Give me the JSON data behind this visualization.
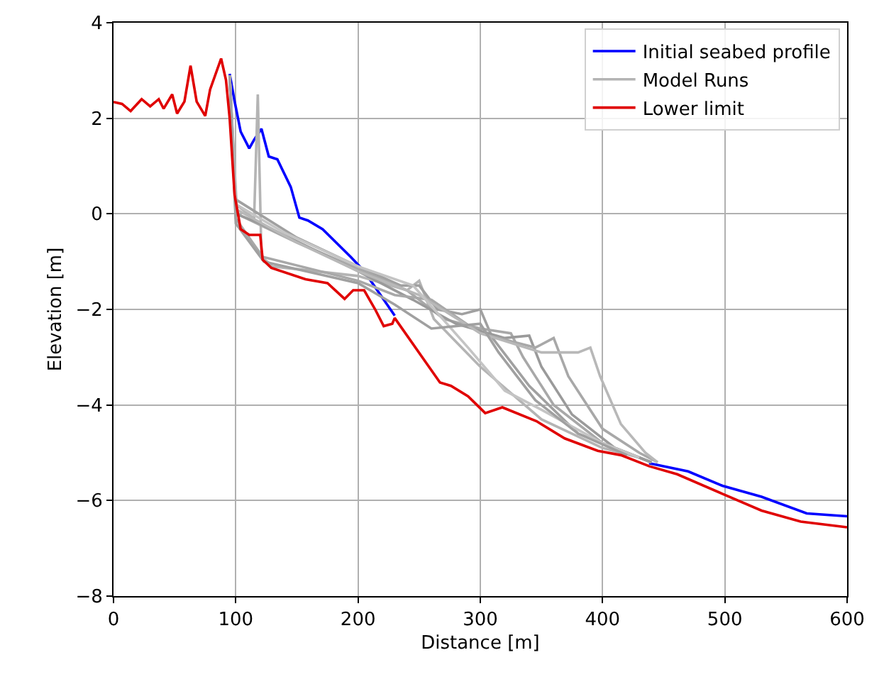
{
  "chart_data": {
    "type": "line",
    "xlabel": "Distance [m]",
    "ylabel": "Elevation [m]",
    "xlim": [
      0,
      600
    ],
    "xticks": [
      0,
      100,
      200,
      300,
      400,
      500,
      600
    ],
    "ylim": [
      -8,
      4
    ],
    "yticks": [
      {
        "value": -8,
        "label": "−8"
      },
      {
        "value": -6,
        "label": "−6"
      },
      {
        "value": -4,
        "label": "−4"
      },
      {
        "value": -2,
        "label": "−2"
      },
      0,
      2,
      4
    ],
    "grid": true,
    "legend": "top right",
    "marker": "none",
    "line_style": "solid",
    "series": [
      {
        "name": "Initial seabed profile",
        "color": "#0000ff",
        "x": [
          95,
          99,
          104,
          111,
          115,
          121,
          127,
          134,
          145,
          152,
          159,
          171,
          194,
          205,
          230,
          330,
          438,
          470,
          498,
          530,
          567,
          600
        ],
        "values": [
          2.93,
          2.36,
          1.72,
          1.37,
          1.55,
          1.78,
          1.2,
          1.14,
          0.56,
          -0.08,
          -0.14,
          -0.32,
          -0.9,
          -1.2,
          -2.13,
          null,
          -5.22,
          -5.39,
          -5.69,
          -5.92,
          -6.27,
          -6.33
        ]
      },
      {
        "name": "Model Runs",
        "color": "#b4b4b4",
        "x": [
          95,
          100,
          115,
          118,
          121,
          130,
          200,
          240,
          250,
          262,
          300,
          350,
          400,
          430
        ],
        "values": [
          2.9,
          0.2,
          -0.1,
          2.5,
          -0.9,
          -1.1,
          -1.3,
          -1.6,
          -1.4,
          -2.2,
          -3.2,
          -4.3,
          -4.9,
          -5.1
        ]
      },
      {
        "color": "#a0a0a0",
        "x": [
          95,
          100,
          150,
          200,
          235,
          250,
          265,
          285,
          300,
          310,
          340,
          380,
          420,
          440
        ],
        "values": [
          2.9,
          0.3,
          -0.5,
          -1.1,
          -1.5,
          -1.5,
          -2.0,
          -2.1,
          -2.0,
          -2.6,
          -3.6,
          -4.6,
          -5.0,
          -5.2
        ]
      },
      {
        "color": "#a8a8a8",
        "x": [
          95,
          101,
          150,
          200,
          240,
          270,
          300,
          325,
          335,
          360,
          400,
          440
        ],
        "values": [
          2.9,
          0.0,
          -0.6,
          -1.15,
          -1.6,
          -2.2,
          -2.4,
          -2.5,
          -3.0,
          -4.0,
          -4.8,
          -5.2
        ]
      },
      {
        "color": "#9a9a9a",
        "x": [
          95,
          100,
          120,
          200,
          245,
          280,
          320,
          340,
          350,
          375,
          410,
          440
        ],
        "values": [
          2.9,
          0.0,
          -0.2,
          -1.2,
          -1.8,
          -2.3,
          -2.6,
          -2.55,
          -3.2,
          -4.2,
          -4.9,
          -5.2
        ]
      },
      {
        "color": "#a8a8a8",
        "x": [
          95,
          100,
          122,
          200,
          230,
          260,
          300,
          345,
          360,
          372,
          400,
          430,
          445
        ],
        "values": [
          2.9,
          -0.1,
          -0.9,
          -1.4,
          -1.7,
          -1.8,
          -2.5,
          -2.8,
          -2.6,
          -3.4,
          -4.5,
          -5.0,
          -5.2
        ]
      },
      {
        "color": "#b8b8b8",
        "x": [
          95,
          100,
          150,
          200,
          250,
          300,
          350,
          380,
          390,
          398,
          415,
          435,
          445
        ],
        "values": [
          2.9,
          0.1,
          -0.6,
          -1.2,
          -1.7,
          -2.5,
          -2.9,
          -2.9,
          -2.8,
          -3.4,
          -4.4,
          -5.0,
          -5.2
        ]
      },
      {
        "color": "#c4c4c4",
        "x": [
          95,
          100,
          140,
          200,
          245,
          290,
          320,
          350,
          400,
          430
        ],
        "values": [
          2.9,
          0.2,
          -0.4,
          -1.1,
          -1.5,
          -2.8,
          -3.7,
          -4.1,
          -4.8,
          -5.1
        ]
      },
      {
        "color": "#a0a0a0",
        "x": [
          95,
          100,
          123,
          200,
          230,
          260,
          300,
          315,
          345,
          380,
          420
        ],
        "values": [
          2.9,
          -0.2,
          -1.0,
          -1.45,
          -1.9,
          -2.4,
          -2.3,
          -2.9,
          -3.9,
          -4.6,
          -5.05
        ]
      },
      {
        "name": "Lower limit",
        "color": "#e00000",
        "x": [
          0,
          7,
          14,
          23,
          30,
          37,
          41,
          48,
          52,
          58,
          63,
          68,
          75,
          79,
          88,
          92,
          95,
          99,
          104,
          111,
          120,
          122,
          129,
          157,
          175,
          189,
          196,
          205,
          214,
          221,
          228,
          230,
          267,
          276,
          290,
          304,
          318,
          346,
          369,
          396,
          415,
          438,
          461,
          498,
          530,
          562,
          600
        ],
        "values": [
          2.34,
          2.3,
          2.15,
          2.4,
          2.25,
          2.4,
          2.2,
          2.5,
          2.1,
          2.35,
          3.1,
          2.35,
          2.05,
          2.6,
          3.25,
          2.8,
          2.0,
          0.4,
          -0.32,
          -0.44,
          -0.44,
          -0.96,
          -1.13,
          -1.37,
          -1.45,
          -1.78,
          -1.6,
          -1.6,
          -2.0,
          -2.35,
          -2.3,
          -2.18,
          -3.53,
          -3.6,
          -3.82,
          -4.17,
          -4.05,
          -4.34,
          -4.7,
          -4.96,
          -5.05,
          -5.28,
          -5.45,
          -5.86,
          -6.21,
          -6.44,
          -6.56
        ]
      }
    ]
  }
}
